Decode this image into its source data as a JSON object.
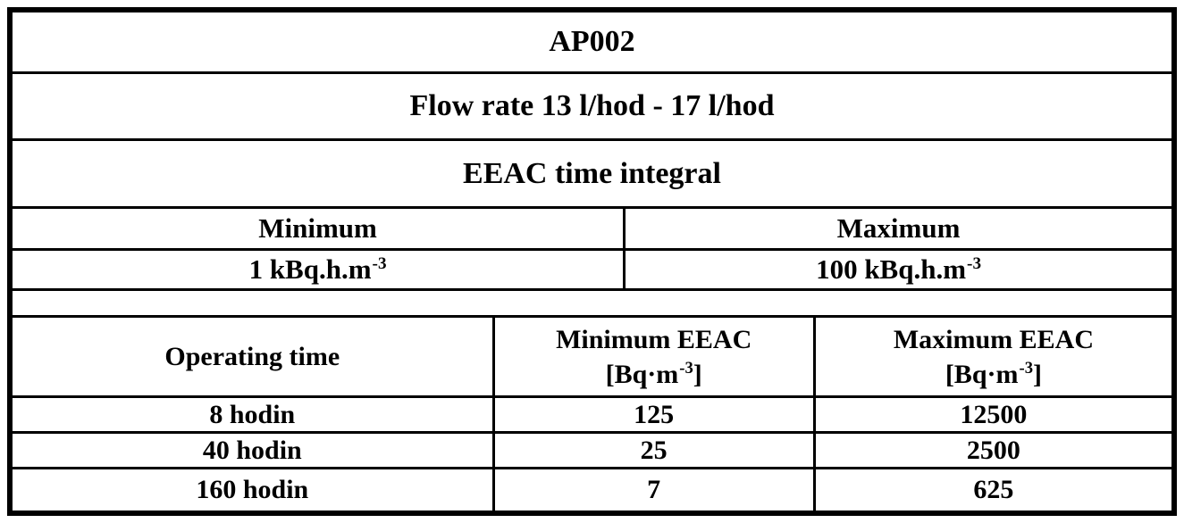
{
  "document": {
    "title": "AP002",
    "subtitle": "Flow rate 13 l/hod - 17 l/hod",
    "section_title": "EEAC time integral"
  },
  "integral_table": {
    "min_header": "Minimum",
    "max_header": "Maximum",
    "min_value": {
      "base": "1 kBq.h.m",
      "sup": "-3"
    },
    "max_value": {
      "base": "100 kBq.h.m",
      "sup": "-3"
    }
  },
  "eeac_table": {
    "col_time_header": "Operating time",
    "col_min_header": {
      "line1": "Minimum EEAC",
      "unit_pre": "[Bq·m",
      "unit_sup": "-3",
      "unit_post": "]"
    },
    "col_max_header": {
      "line1": "Maximum EEAC",
      "unit_pre": "[Bq·m",
      "unit_sup": "-3",
      "unit_post": "]"
    },
    "rows": [
      {
        "time": "8 hodin",
        "min": "125",
        "max": "12500"
      },
      {
        "time": "40 hodin",
        "min": "25",
        "max": "2500"
      },
      {
        "time": "160 hodin",
        "min": "7",
        "max": "625"
      }
    ]
  },
  "colors": {
    "border": "#000000",
    "background": "#ffffff",
    "text": "#000000"
  }
}
